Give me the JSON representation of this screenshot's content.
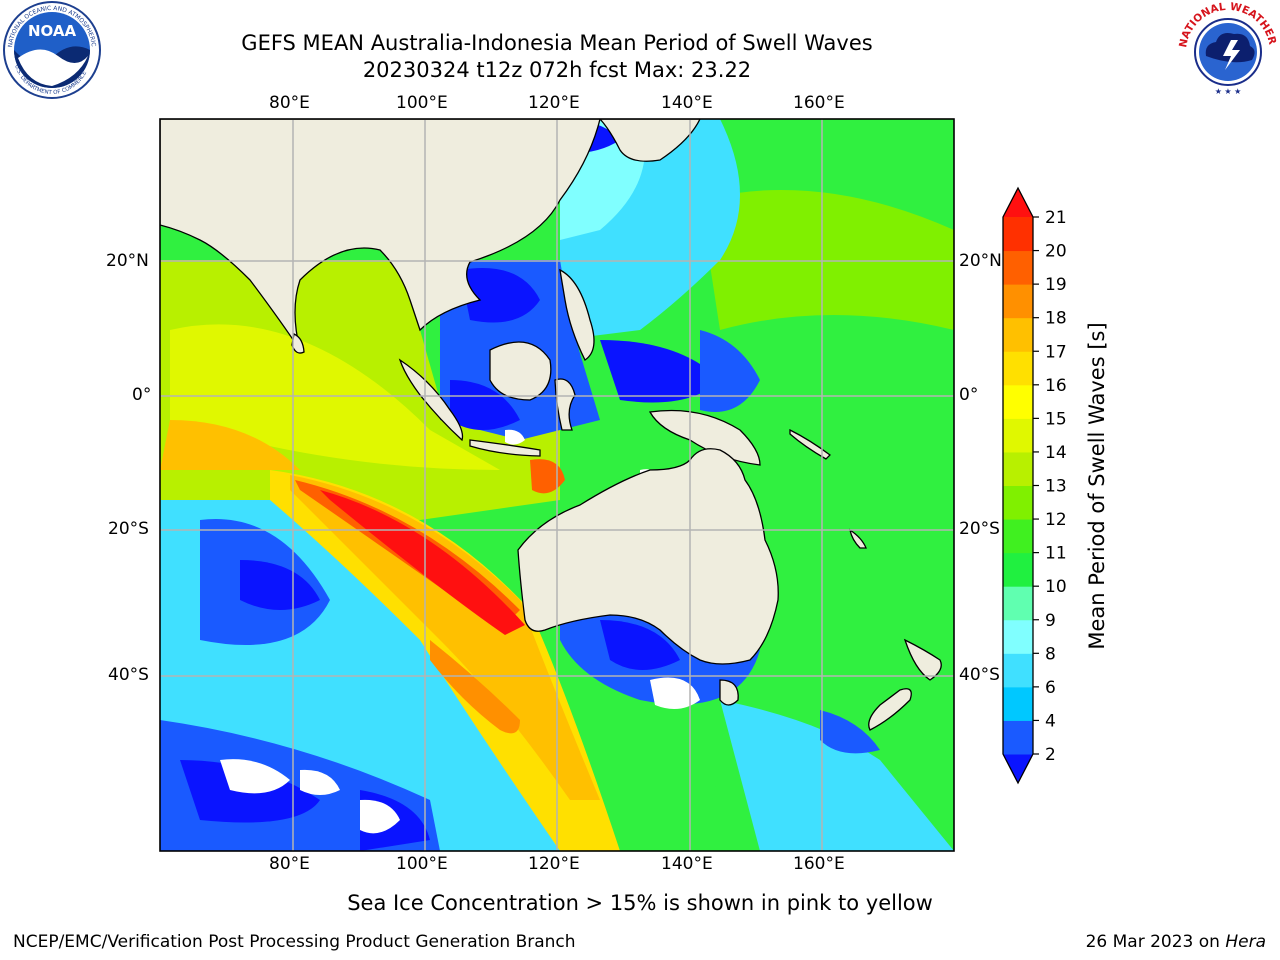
{
  "header": {
    "title_line1": "GEFS MEAN Australia-Indonesia Mean Period of Swell Waves",
    "title_line2": "20230324 t12z 072h fcst   Max: 23.22"
  },
  "logos": {
    "noaa": {
      "text": "NOAA",
      "ring_text": "NATIONAL OCEANIC AND ATMOSPHERIC ADMINISTRATION",
      "ring_text_bottom": "U.S. DEPARTMENT OF COMMERCE"
    },
    "nws": {
      "ring_text": "NATIONAL WEATHER SERVICE"
    }
  },
  "map": {
    "lon_ticks": [
      "80°E",
      "100°E",
      "120°E",
      "140°E",
      "160°E"
    ],
    "lat_ticks": [
      "20°N",
      "0°",
      "20°S",
      "40°S"
    ],
    "colors": {
      "land": "#efedde",
      "coast": "#000000",
      "grid": "#b4b4b4"
    }
  },
  "colorbar": {
    "label": "Mean Period of Swell Waves [s]",
    "ticks": [
      "2",
      "4",
      "6",
      "8",
      "9",
      "10",
      "11",
      "12",
      "13",
      "14",
      "15",
      "16",
      "17",
      "18",
      "19",
      "20",
      "21"
    ],
    "colors": [
      "#1a5aff",
      "#00c8ff",
      "#40e0ff",
      "#80ffff",
      "#60ffb0",
      "#20f040",
      "#40f020",
      "#80f000",
      "#b8f000",
      "#e0f800",
      "#ffff00",
      "#ffe000",
      "#ffc000",
      "#ff9000",
      "#ff6000",
      "#ff3000"
    ],
    "under_color": "#0a14ff",
    "over_color": "#ff1010"
  },
  "footer": {
    "ice_note": "Sea Ice Concentration > 15% is shown in pink to yellow",
    "left": "NCEP/EMC/Verification Post Processing Product Generation Branch",
    "right_prefix": "26 Mar 2023 on ",
    "right_host": "Hera"
  }
}
